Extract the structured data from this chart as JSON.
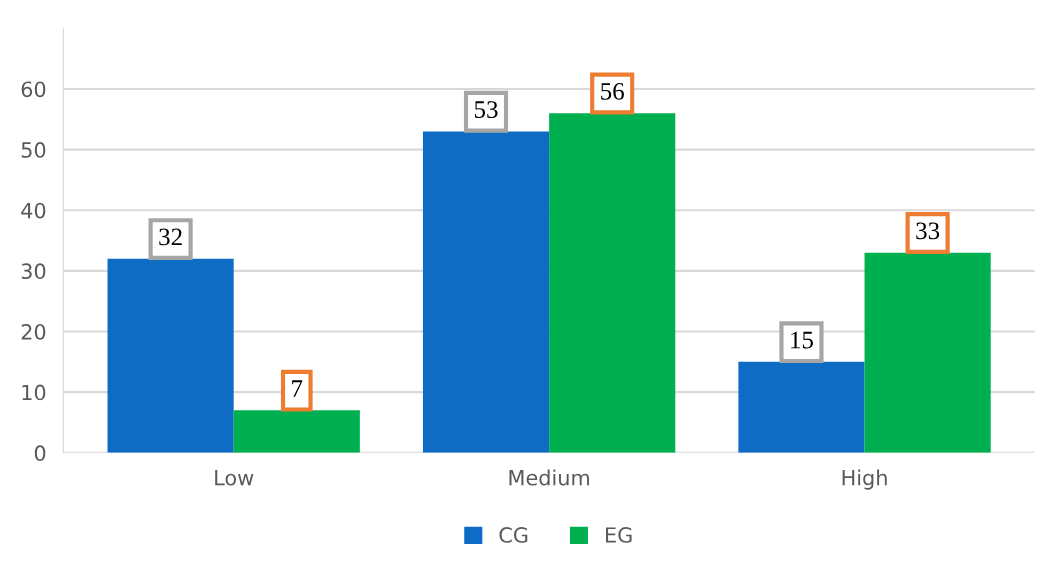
{
  "chart_data": {
    "type": "bar",
    "categories": [
      "Low",
      "Medium",
      "High"
    ],
    "series": [
      {
        "name": "CG",
        "color": "#0f6cc4",
        "values": [
          32,
          53,
          15
        ]
      },
      {
        "name": "EG",
        "color": "#00b050",
        "values": [
          7,
          56,
          33
        ]
      }
    ],
    "ylim": [
      0,
      70
    ],
    "yticks": [
      0,
      10,
      20,
      30,
      40,
      50,
      60
    ],
    "grid": "y",
    "legend": "bottom",
    "data_labels": true
  }
}
